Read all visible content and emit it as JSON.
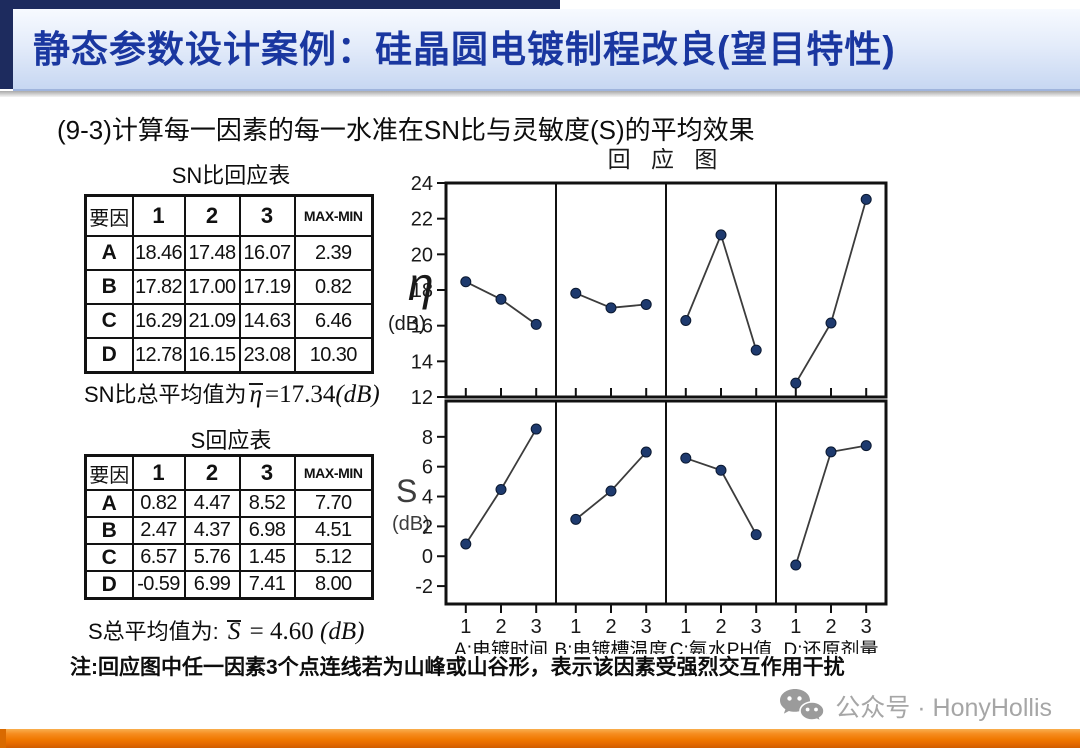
{
  "header": {
    "title": "静态参数设计案例：硅晶圆电镀制程改良(望目特性)"
  },
  "subtitle": "(9-3)计算每一因素的每一水准在SN比与灵敏度(S)的平均效果",
  "sn_table": {
    "title": "SN比回应表",
    "headers": [
      "要因",
      "1",
      "2",
      "3",
      "MAX-MIN"
    ],
    "rows": [
      [
        "A",
        "18.46",
        "17.48",
        "16.07",
        "2.39"
      ],
      [
        "B",
        "17.82",
        "17.00",
        "17.19",
        "0.82"
      ],
      [
        "C",
        "16.29",
        "21.09",
        "14.63",
        "6.46"
      ],
      [
        "D",
        "12.78",
        "16.15",
        "23.08",
        "10.30"
      ]
    ],
    "mean_prefix": "SN比总平均值为",
    "mean_symbol": "η",
    "mean_eq": "=17.34",
    "mean_unit": "(dB)"
  },
  "s_table": {
    "title": "S回应表",
    "headers": [
      "要因",
      "1",
      "2",
      "3",
      "MAX-MIN"
    ],
    "rows": [
      [
        "A",
        "0.82",
        "4.47",
        "8.52",
        "7.70"
      ],
      [
        "B",
        "2.47",
        "4.37",
        "6.98",
        "4.51"
      ],
      [
        "C",
        "6.57",
        "5.76",
        "1.45",
        "5.12"
      ],
      [
        "D",
        "-0.59",
        "6.99",
        "7.41",
        "8.00"
      ]
    ],
    "mean_prefix": "S总平均值为: ",
    "mean_symbol": "S",
    "mean_eq": " = 4.60 ",
    "mean_unit": "(dB)"
  },
  "note": "注:回应图中任一因素3个点连线若为山峰或山谷形，表示该因素受强烈交互作用干扰",
  "footer": {
    "label": "公众号 · HonyHollis",
    "icon": "wechat-icon",
    "text_color": "#a6a6a6"
  },
  "accent_colors": {
    "header_text": "#1a37a0",
    "navy_frame": "#1d2b5e",
    "bottom_bar_orange": "#f07800"
  },
  "chart_data": {
    "type": "line",
    "title": "回 应 图",
    "x_ticks": [
      "1",
      "2",
      "3"
    ],
    "factor_labels": [
      "A:电镀时间",
      "B:电镀槽温度",
      "C:氨水PH值",
      "D:还原剂量"
    ],
    "point_color": "#1e3a6e",
    "line_color": "#3c3c3c",
    "axis_color": "#111111",
    "rows": [
      {
        "ylabel": "η",
        "unit": "(dB)",
        "ylim": [
          12,
          24
        ],
        "yticks": [
          24,
          22,
          20,
          18,
          16,
          14,
          12
        ],
        "series": [
          {
            "name": "A",
            "values": [
              18.46,
              17.48,
              16.07
            ]
          },
          {
            "name": "B",
            "values": [
              17.82,
              17.0,
              17.19
            ]
          },
          {
            "name": "C",
            "values": [
              16.29,
              21.09,
              14.63
            ]
          },
          {
            "name": "D",
            "values": [
              12.78,
              16.15,
              23.08
            ]
          }
        ]
      },
      {
        "ylabel": "S",
        "unit": "(dB)",
        "ylim": [
          -3.2,
          10.4
        ],
        "yticks": [
          8,
          6,
          4,
          2,
          0,
          -2
        ],
        "series": [
          {
            "name": "A",
            "values": [
              0.82,
              4.47,
              8.52
            ]
          },
          {
            "name": "B",
            "values": [
              2.47,
              4.37,
              6.98
            ]
          },
          {
            "name": "C",
            "values": [
              6.57,
              5.76,
              1.45
            ]
          },
          {
            "name": "D",
            "values": [
              -0.59,
              6.99,
              7.41
            ]
          }
        ]
      }
    ]
  }
}
